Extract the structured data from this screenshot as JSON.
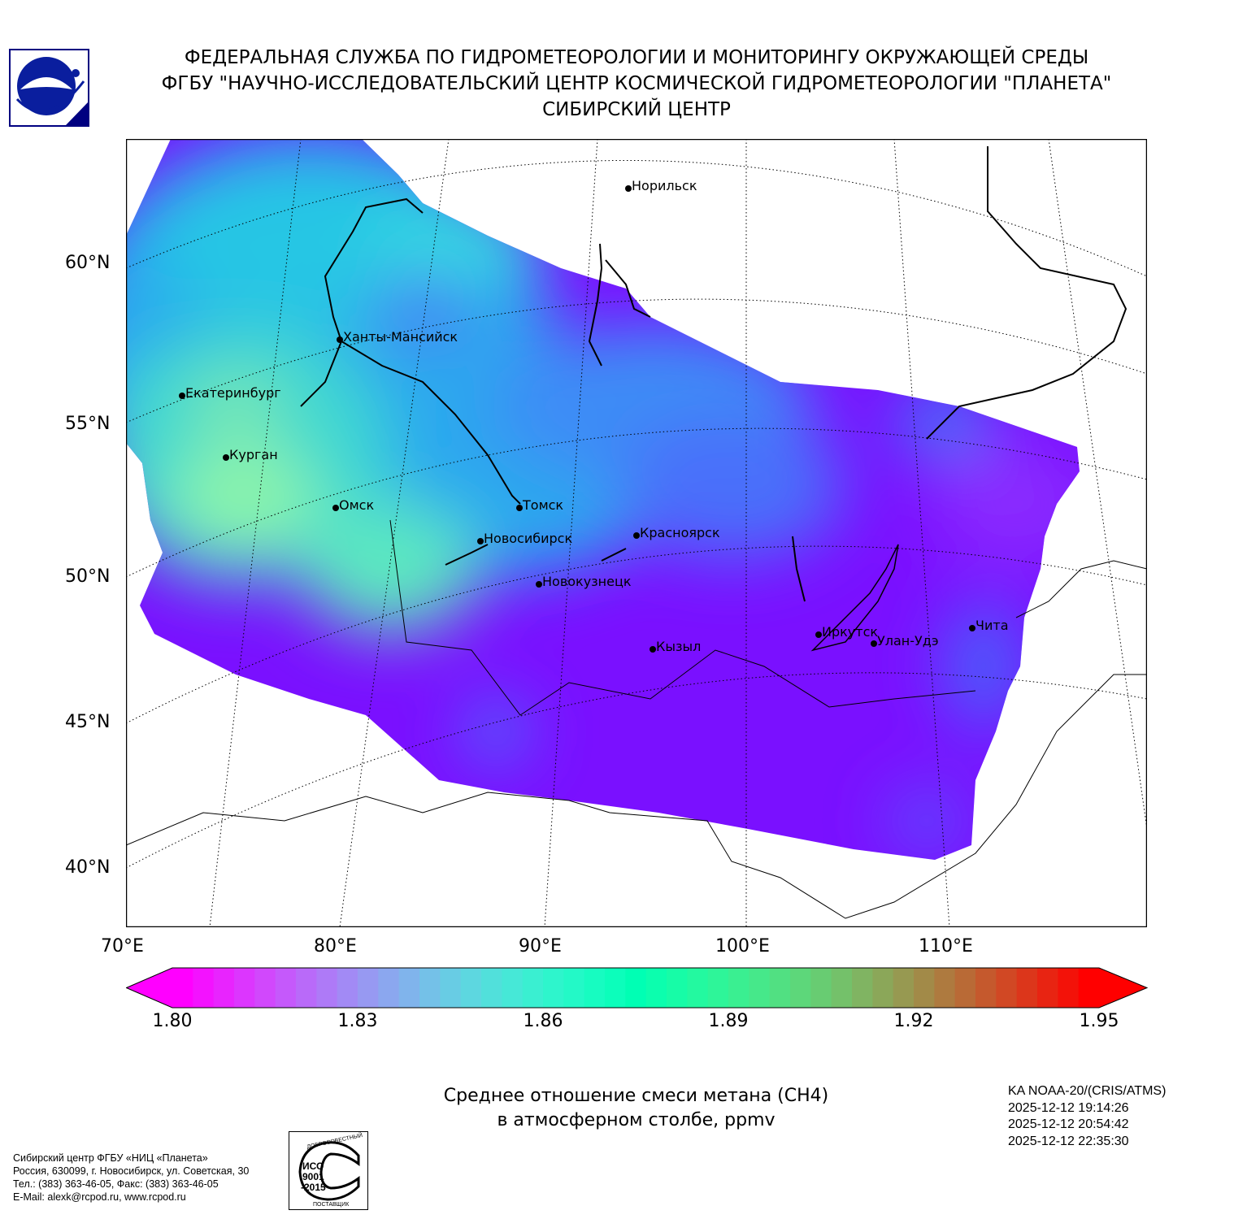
{
  "header": {
    "line1": "ФЕДЕРАЛЬНАЯ СЛУЖБА ПО ГИДРОМЕТЕОРОЛОГИИ И МОНИТОРИНГУ ОКРУЖАЮЩЕЙ СРЕДЫ",
    "line2": "ФГБУ \"НАУЧНО-ИССЛЕДОВАТЕЛЬСКИЙ ЦЕНТР КОСМИЧЕСКОЙ ГИДРОМЕТЕОРОЛОГИИ \"ПЛАНЕТА\"",
    "line3": "СИБИРСКИЙ ЦЕНТР"
  },
  "map": {
    "lat_labels": [
      "60°N",
      "55°N",
      "50°N",
      "45°N",
      "40°N"
    ],
    "lon_labels": [
      "70°E",
      "80°E",
      "90°E",
      "100°E",
      "110°E"
    ],
    "cities": [
      "Норильск",
      "Ханты-Мансийск",
      "Екатеринбург",
      "Курган",
      "Омск",
      "Томск",
      "Новосибирск",
      "Красноярск",
      "Новокузнецк",
      "Кызыл",
      "Иркутск",
      "Улан-Удэ",
      "Чита"
    ]
  },
  "colorbar": {
    "min": 1.8,
    "max": 1.95,
    "step": 0.00333,
    "ticks": [
      "1.80",
      "1.83",
      "1.86",
      "1.89",
      "1.92",
      "1.95"
    ],
    "colormap": "rainbow"
  },
  "caption": {
    "line1": "Среднее отношение смеси метана (CH4)",
    "line2": "в атмосферном столбе, ppmv"
  },
  "satellite": {
    "name": "KA NOAA-20/(CRIS/ATMS)",
    "times": [
      "2025-12-12 19:14:26",
      "2025-12-12 20:54:42",
      "2025-12-12 22:35:30"
    ]
  },
  "footer": {
    "lines": [
      "Сибирский центр ФГБУ «НИЦ «Планета»",
      "Россия, 630099, г. Новосибирск, ул. Советская, 30",
      "Тел.: (383) 363-46-05, Факс: (383) 363-46-05",
      "E-Mail: alexk@rcpod.ru, www.rcpod.ru"
    ],
    "iso_badge": {
      "top": "ДОБРОСОВЕСТНЫЙ",
      "mid": "ИСО 9001 -2015",
      "bottom": "ПОСТАВЩИК"
    }
  }
}
